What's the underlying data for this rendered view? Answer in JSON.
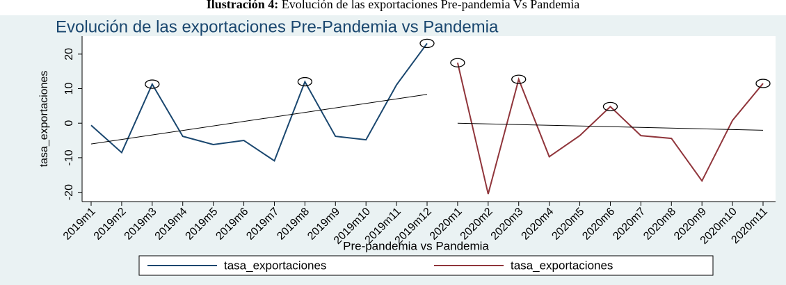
{
  "caption": {
    "label": "Ilustración 4:",
    "text": "Evolución de las exportaciones Pre-pandemia Vs Pandemia"
  },
  "chart_data": {
    "type": "line",
    "title": "Evolución de las exportaciones Pre-Pandemia vs Pandemia",
    "x_label": "Pre-pandemia vs Pandemia",
    "y_label": "tasa_exportaciones",
    "categories": [
      "2019m1",
      "2019m2",
      "2019m3",
      "2019m4",
      "2019m5",
      "2019m6",
      "2019m7",
      "2019m8",
      "2019m9",
      "2019m10",
      "2019m11",
      "2019m12",
      "2020m1",
      "2020m2",
      "2020m3",
      "2020m4",
      "2020m5",
      "2020m6",
      "2020m7",
      "2020m8",
      "2020m9",
      "2020m10",
      "2020m11"
    ],
    "series": [
      {
        "name": "tasa_exportaciones",
        "color": "#1a476f",
        "fit_line": true,
        "circled": [
          2,
          7,
          11
        ],
        "values": [
          -0.6,
          -8.5,
          11.3,
          -3.8,
          -6.2,
          -5,
          -10.9,
          12,
          -3.8,
          -4.8,
          11.1,
          23.1,
          null,
          null,
          null,
          null,
          null,
          null,
          null,
          null,
          null,
          null,
          null
        ]
      },
      {
        "name": "tasa_exportaciones",
        "color": "#90353b",
        "fit_line": true,
        "circled": [
          12,
          14,
          17,
          22
        ],
        "values": [
          null,
          null,
          null,
          null,
          null,
          null,
          null,
          null,
          null,
          null,
          null,
          null,
          17.5,
          -20.5,
          12.7,
          -9.7,
          -3.6,
          4.8,
          -3.6,
          -4.4,
          -16.7,
          0.8,
          11.5
        ]
      }
    ],
    "ylim": [
      -22.7,
      25.2
    ],
    "yticks": [
      -20,
      -10,
      0,
      10,
      20
    ],
    "legend": "bottom"
  }
}
